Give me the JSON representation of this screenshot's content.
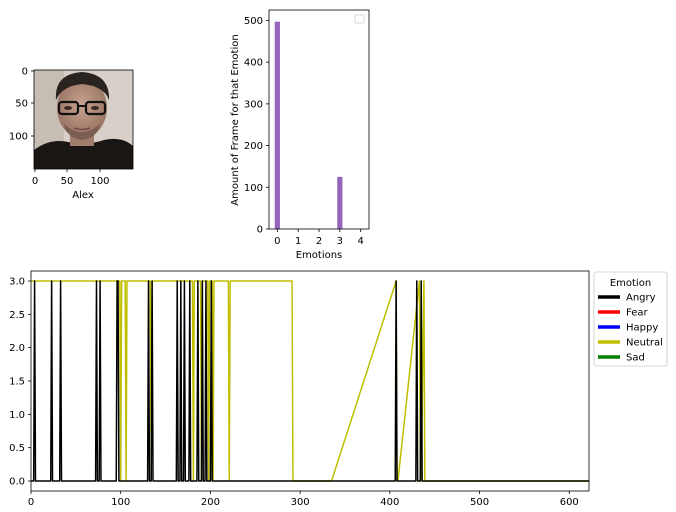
{
  "face_panel": {
    "xlabel": "Alex",
    "x_ticks": [
      "0",
      "50",
      "100"
    ],
    "y_ticks": [
      "0",
      "50",
      "100"
    ]
  },
  "chart_data": [
    {
      "type": "bar",
      "title": "",
      "xlabel": "Emotions",
      "ylabel": "Amount of Frame for that Emotion",
      "categories": [
        0,
        1,
        2,
        3,
        4
      ],
      "values": [
        497,
        0,
        0,
        125,
        0
      ],
      "bar_color": "#9467bd",
      "xlim": [
        -0.4,
        4.4
      ],
      "ylim": [
        0,
        525
      ],
      "x_ticks": [
        0,
        1,
        2,
        3,
        4
      ],
      "y_ticks": [
        0,
        100,
        200,
        300,
        400,
        500
      ],
      "legend": "top-right (empty)"
    },
    {
      "type": "line",
      "title": "",
      "xlabel": "",
      "ylabel": "",
      "xlim": [
        0,
        622
      ],
      "ylim": [
        -0.15,
        3.15
      ],
      "x_ticks": [
        0,
        100,
        200,
        300,
        400,
        500,
        600
      ],
      "y_ticks": [
        0.0,
        0.5,
        1.0,
        1.5,
        2.0,
        2.5,
        3.0
      ],
      "legend_title": "Emotion",
      "legend_position": "outside-right-top",
      "series": [
        {
          "name": "Angry",
          "color": "#000000",
          "x": [
            0,
            3,
            4,
            5,
            22,
            23,
            24,
            32,
            33,
            34,
            72,
            73,
            74,
            76,
            77,
            78,
            95,
            96,
            97,
            98,
            130,
            131,
            132,
            134,
            135,
            136,
            162,
            163,
            164,
            166,
            167,
            168,
            170,
            171,
            172,
            176,
            177,
            178,
            185,
            186,
            187,
            190,
            191,
            192,
            194,
            195,
            196,
            200,
            201,
            202,
            406,
            407,
            408,
            429,
            430,
            431,
            434,
            435,
            436,
            622
          ],
          "y": [
            0,
            0,
            3,
            0,
            0,
            3,
            0,
            0,
            3,
            0,
            0,
            3,
            0,
            0,
            3,
            0,
            0,
            3,
            3,
            0,
            0,
            3,
            0,
            0,
            3,
            0,
            0,
            3,
            0,
            0,
            3,
            0,
            0,
            3,
            0,
            0,
            3,
            0,
            0,
            3,
            0,
            0,
            3,
            0,
            0,
            3,
            0,
            0,
            3,
            0,
            0,
            3,
            0,
            0,
            3,
            0,
            0,
            3,
            0,
            0
          ]
        },
        {
          "name": "Fear",
          "color": "#ff0000",
          "x": [],
          "y": []
        },
        {
          "name": "Happy",
          "color": "#0000ff",
          "x": [],
          "y": []
        },
        {
          "name": "Neutral",
          "color": "#bfbf00",
          "x": [
            0,
            99,
            100,
            101,
            105,
            106,
            107,
            133,
            134,
            135,
            180,
            181,
            182,
            189,
            190,
            191,
            197,
            198,
            199,
            202,
            203,
            204,
            220,
            221,
            222,
            291,
            292,
            293,
            333,
            334,
            335,
            407,
            408,
            409,
            433,
            434,
            435,
            438,
            439,
            440,
            622
          ],
          "y": [
            3,
            3,
            0,
            3,
            3,
            0,
            3,
            3,
            0,
            3,
            3,
            0,
            3,
            3,
            0,
            3,
            3,
            0,
            3,
            3,
            0,
            3,
            3,
            0,
            3,
            3,
            0,
            0,
            0,
            0,
            0,
            3,
            0,
            0,
            3,
            0,
            0,
            3,
            0,
            0,
            0
          ]
        },
        {
          "name": "Sad",
          "color": "#008000",
          "x": [],
          "y": []
        }
      ]
    }
  ]
}
